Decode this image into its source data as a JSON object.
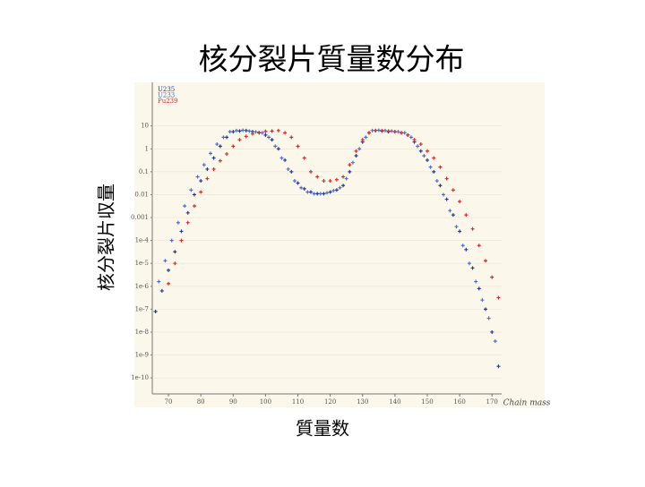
{
  "chart_data": {
    "type": "scatter",
    "title": "核分裂片質量数分布",
    "xlabel": "質量数",
    "ylabel": "核分裂片収量",
    "axis_note": "Chain mass",
    "yscale": "log",
    "grid": true,
    "xlim": [
      65,
      186
    ],
    "ylim": [
      2e-11,
      800
    ],
    "xticks": [
      70,
      80,
      90,
      100,
      110,
      120,
      130,
      140,
      150,
      160,
      170
    ],
    "yticks": [
      10,
      1,
      0.1,
      0.01,
      0.001,
      {
        "value": 0.0001,
        "label": "1e-4"
      },
      {
        "value": 1e-05,
        "label": "1e-5"
      },
      {
        "value": 1e-06,
        "label": "1e-6"
      },
      {
        "value": 1e-07,
        "label": "1e-7"
      },
      {
        "value": 1e-08,
        "label": "1e-8"
      },
      {
        "value": 1e-09,
        "label": "1e-9"
      },
      {
        "value": 1e-10,
        "label": "1e-10"
      }
    ],
    "series": [
      {
        "name": "U235",
        "color": "#2b3a8c",
        "x": [
          66,
          68,
          70,
          72,
          74,
          76,
          78,
          80,
          82,
          84,
          86,
          88,
          90,
          92,
          94,
          96,
          98,
          100,
          102,
          104,
          106,
          108,
          110,
          112,
          114,
          116,
          118,
          120,
          122,
          124,
          126,
          128,
          130,
          132,
          134,
          136,
          138,
          140,
          142,
          144,
          146,
          148,
          150,
          152,
          154,
          156,
          158,
          160,
          162,
          164,
          166,
          168,
          170,
          172
        ],
        "values": [
          7.9e-08,
          6.3e-07,
          5e-06,
          3.2e-05,
          0.00025,
          0.0016,
          0.01,
          0.04,
          0.13,
          0.4,
          1.3,
          3.2,
          5.6,
          6.0,
          6.3,
          5.6,
          5.0,
          4.0,
          2.5,
          1,
          0.32,
          0.1,
          0.032,
          0.018,
          0.013,
          0.011,
          0.011,
          0.013,
          0.016,
          0.025,
          0.1,
          0.5,
          2.0,
          5.0,
          6.3,
          6.0,
          5.6,
          5.6,
          5.0,
          4.0,
          2.0,
          0.8,
          0.32,
          0.1,
          0.025,
          0.0063,
          0.0013,
          0.00025,
          4e-05,
          6.3e-06,
          7.9e-07,
          1e-07,
          1e-08,
          3.2e-10
        ]
      },
      {
        "name": "U233",
        "color": "#4a6fd6",
        "x": [
          67,
          69,
          71,
          73,
          75,
          77,
          79,
          81,
          83,
          85,
          87,
          89,
          91,
          93,
          95,
          97,
          99,
          101,
          103,
          105,
          107,
          109,
          111,
          113,
          115,
          117,
          119,
          121,
          123,
          125,
          127,
          129,
          131,
          133,
          135,
          137,
          139,
          141,
          143,
          145,
          147,
          149,
          151,
          153,
          155,
          157,
          159,
          161,
          163,
          165,
          167,
          169,
          171
        ],
        "values": [
          1.6e-06,
          1.3e-05,
          0.0001,
          0.0006,
          0.0032,
          0.016,
          0.06,
          0.2,
          0.63,
          1.6,
          3.2,
          5.6,
          6.3,
          6.5,
          6.0,
          5.5,
          5.0,
          3.2,
          1.3,
          0.4,
          0.13,
          0.04,
          0.02,
          0.013,
          0.011,
          0.011,
          0.012,
          0.015,
          0.02,
          0.05,
          0.25,
          1.0,
          3.2,
          6.3,
          6.5,
          6.3,
          6.0,
          5.6,
          5.0,
          3.2,
          1.3,
          0.5,
          0.16,
          0.04,
          0.01,
          0.002,
          0.0004,
          6e-05,
          1e-05,
          1.6e-06,
          2.5e-07,
          4e-08,
          4e-09
        ]
      },
      {
        "name": "Pu239",
        "color": "#e02a2a",
        "x": [
          70,
          72,
          74,
          76,
          78,
          80,
          82,
          84,
          86,
          88,
          90,
          92,
          94,
          96,
          98,
          100,
          102,
          104,
          106,
          108,
          110,
          112,
          114,
          116,
          118,
          120,
          122,
          124,
          126,
          128,
          130,
          132,
          134,
          136,
          138,
          140,
          142,
          144,
          146,
          148,
          150,
          152,
          154,
          156,
          158,
          160,
          162,
          164,
          166,
          168,
          170,
          172
        ],
        "values": [
          1.3e-06,
          1e-05,
          0.0001,
          0.0006,
          0.0032,
          0.013,
          0.05,
          0.13,
          0.3,
          0.6,
          1.3,
          2.5,
          3.5,
          4.5,
          5.2,
          5.8,
          6.0,
          6.3,
          5.0,
          3.2,
          1.3,
          0.4,
          0.1,
          0.06,
          0.04,
          0.04,
          0.045,
          0.06,
          0.2,
          0.8,
          2.5,
          5.0,
          6.3,
          6.3,
          6.0,
          5.6,
          5.0,
          4.0,
          2.5,
          1.6,
          0.8,
          0.4,
          0.16,
          0.05,
          0.016,
          0.005,
          0.0013,
          0.00032,
          6e-05,
          1.3e-05,
          2.5e-06,
          3.2e-07
        ]
      }
    ]
  }
}
